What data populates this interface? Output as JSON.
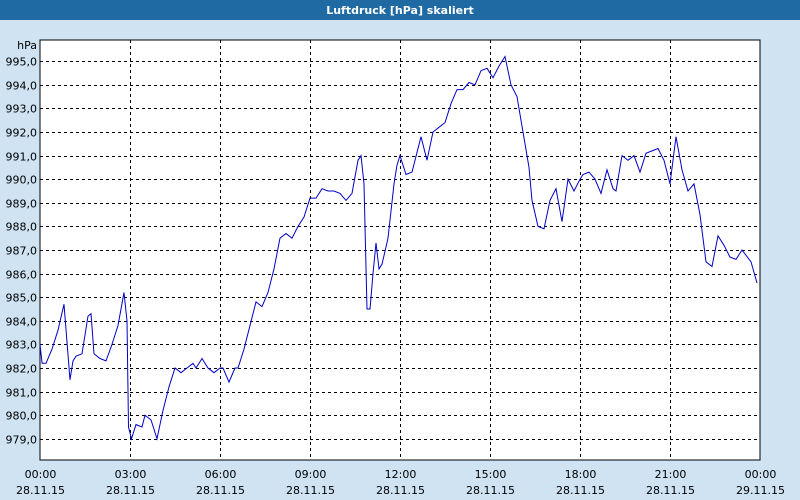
{
  "window": {
    "title": "Luftdruck [hPa] skaliert"
  },
  "colors": {
    "background": "#cfe3f3",
    "plot_background": "#ffffff",
    "titlebar": "#1f6aa3",
    "series_line": "#0000c8",
    "grid": "#000000"
  },
  "chart_data": {
    "type": "line",
    "title": "Luftdruck [hPa] skaliert",
    "ylabel": "hPa",
    "xlabel": "",
    "ylim": [
      978.1,
      995.9
    ],
    "yticks": [
      "995,0",
      "994,0",
      "993,0",
      "992,0",
      "991,0",
      "990,0",
      "989,0",
      "988,0",
      "987,0",
      "986,0",
      "985,0",
      "984,0",
      "983,0",
      "982,0",
      "981,0",
      "980,0",
      "979,0"
    ],
    "ytick_values": [
      995,
      994,
      993,
      992,
      991,
      990,
      989,
      988,
      987,
      986,
      985,
      984,
      983,
      982,
      981,
      980,
      979
    ],
    "xlim_hours": [
      0,
      24
    ],
    "xticks": [
      {
        "hour": 0,
        "time": "00:00",
        "date": "28.11.15"
      },
      {
        "hour": 3,
        "time": "03:00",
        "date": "28.11.15"
      },
      {
        "hour": 6,
        "time": "06:00",
        "date": "28.11.15"
      },
      {
        "hour": 9,
        "time": "09:00",
        "date": "28.11.15"
      },
      {
        "hour": 12,
        "time": "12:00",
        "date": "28.11.15"
      },
      {
        "hour": 15,
        "time": "15:00",
        "date": "28.11.15"
      },
      {
        "hour": 18,
        "time": "18:00",
        "date": "28.11.15"
      },
      {
        "hour": 21,
        "time": "21:00",
        "date": "28.11.15"
      },
      {
        "hour": 24,
        "time": "00:00",
        "date": "29.11.15"
      }
    ],
    "grid": true,
    "series": [
      {
        "x": [
          0.0,
          0.07,
          0.2,
          0.4,
          0.6,
          0.8,
          1.0,
          1.1,
          1.2,
          1.4,
          1.6,
          1.7,
          1.8,
          2.0,
          2.2,
          2.4,
          2.6,
          2.8,
          2.9,
          2.95,
          3.05,
          3.2,
          3.4,
          3.5,
          3.7,
          3.9,
          4.1,
          4.3,
          4.5,
          4.7,
          4.9,
          5.1,
          5.2,
          5.4,
          5.6,
          5.8,
          6.0,
          6.1,
          6.3,
          6.5,
          6.6,
          6.8,
          7.0,
          7.2,
          7.4,
          7.6,
          7.8,
          8.0,
          8.2,
          8.4,
          8.6,
          8.8,
          9.0,
          9.2,
          9.4,
          9.6,
          9.8,
          10.0,
          10.2,
          10.4,
          10.6,
          10.7,
          10.8,
          10.9,
          11.0,
          11.1,
          11.2,
          11.3,
          11.4,
          11.6,
          11.8,
          11.9,
          12.0,
          12.2,
          12.4,
          12.6,
          12.7,
          12.9,
          13.1,
          13.3,
          13.5,
          13.7,
          13.9,
          14.1,
          14.3,
          14.5,
          14.7,
          14.9,
          15.1,
          15.3,
          15.5,
          15.7,
          15.9,
          16.1,
          16.3,
          16.4,
          16.6,
          16.8,
          17.0,
          17.2,
          17.4,
          17.6,
          17.8,
          18.0,
          18.1,
          18.3,
          18.5,
          18.7,
          18.9,
          19.1,
          19.2,
          19.4,
          19.6,
          19.8,
          20.0,
          20.2,
          20.4,
          20.6,
          20.8,
          21.0,
          21.2,
          21.4,
          21.6,
          21.8,
          22.0,
          22.2,
          22.4,
          22.6,
          22.8,
          23.0,
          23.2,
          23.4,
          23.7,
          23.9
        ],
        "y": [
          983.0,
          982.2,
          982.2,
          982.8,
          983.6,
          984.7,
          981.5,
          982.3,
          982.5,
          982.6,
          984.2,
          984.3,
          982.6,
          982.4,
          982.3,
          983.0,
          983.8,
          985.2,
          984.0,
          979.5,
          979.0,
          979.6,
          979.5,
          980.0,
          979.8,
          979.0,
          980.2,
          981.2,
          982.0,
          981.8,
          982.0,
          982.2,
          982.0,
          982.4,
          982.0,
          981.8,
          982.0,
          982.0,
          981.4,
          982.0,
          982.0,
          982.8,
          983.8,
          984.8,
          984.6,
          985.2,
          986.2,
          987.5,
          987.7,
          987.5,
          988.0,
          988.4,
          989.2,
          989.2,
          989.6,
          989.5,
          989.5,
          989.4,
          989.1,
          989.4,
          990.8,
          991.0,
          989.8,
          984.5,
          984.5,
          986.0,
          987.3,
          986.2,
          986.4,
          987.5,
          989.8,
          990.6,
          991.0,
          990.2,
          990.3,
          991.3,
          991.8,
          990.8,
          992.0,
          992.2,
          992.4,
          993.2,
          993.8,
          993.8,
          994.1,
          994.0,
          994.6,
          994.7,
          994.3,
          994.8,
          995.2,
          994.0,
          993.5,
          992.0,
          990.5,
          989.1,
          988.0,
          987.9,
          989.1,
          989.6,
          988.2,
          990.0,
          989.5,
          990.0,
          990.2,
          990.3,
          990.0,
          989.4,
          990.4,
          989.6,
          989.5,
          991.0,
          990.8,
          991.0,
          990.3,
          991.1,
          991.2,
          991.3,
          990.8,
          989.8,
          991.8,
          990.4,
          989.5,
          989.8,
          988.5,
          986.5,
          986.3,
          987.6,
          987.2,
          986.7,
          986.6,
          987.0,
          986.5,
          985.6
        ]
      }
    ]
  }
}
